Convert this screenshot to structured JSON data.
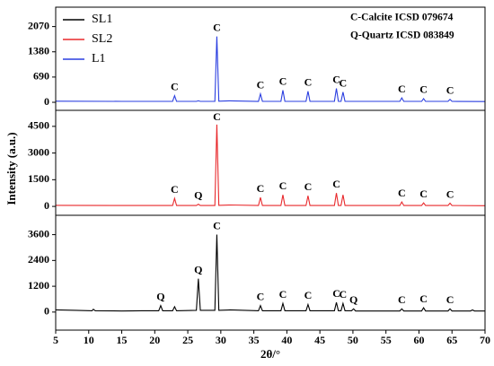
{
  "chart_data": {
    "type": "line",
    "xlabel": "2θ/°",
    "ylabel": "Intensity (a.u.)",
    "xlim": [
      5,
      70
    ],
    "xticks": [
      5,
      10,
      15,
      20,
      25,
      30,
      35,
      40,
      45,
      50,
      55,
      60,
      65,
      70
    ],
    "legend": "upper left",
    "notes": [
      "C-Calcite ICSD 079674",
      "Q-Quartz ICSD 083849"
    ],
    "series": [
      {
        "name": "SL1",
        "color": "#000000",
        "ylim": [
          -840,
          4500
        ],
        "yticks": [
          0,
          1200,
          2400,
          3600
        ],
        "x": [
          5,
          8,
          10.5,
          10.7,
          11,
          15,
          18,
          20.6,
          20.9,
          21.2,
          22.7,
          23,
          23.3,
          26.3,
          26.6,
          26.9,
          29.1,
          29.4,
          29.7,
          31.4,
          35.7,
          36,
          36.3,
          39.1,
          39.4,
          39.7,
          42.9,
          43.2,
          43.5,
          47.2,
          47.5,
          47.8,
          48.2,
          48.5,
          48.8,
          49.8,
          50.1,
          50.4,
          57.1,
          57.4,
          57.7,
          60.4,
          60.7,
          61,
          64.4,
          64.7,
          65,
          67.8,
          68.1,
          68.4,
          70
        ],
        "values": [
          100,
          80,
          60,
          130,
          60,
          50,
          60,
          60,
          300,
          60,
          60,
          250,
          60,
          80,
          1550,
          80,
          80,
          3600,
          80,
          100,
          60,
          300,
          60,
          60,
          400,
          60,
          60,
          350,
          60,
          60,
          450,
          60,
          60,
          400,
          60,
          60,
          150,
          50,
          50,
          150,
          50,
          50,
          200,
          50,
          50,
          150,
          50,
          50,
          100,
          50,
          50
        ],
        "annotations": [
          {
            "text": "Q",
            "x": 20.9
          },
          {
            "text": "Q",
            "x": 26.6
          },
          {
            "text": "C",
            "x": 29.4
          },
          {
            "text": "C",
            "x": 36
          },
          {
            "text": "C",
            "x": 39.4
          },
          {
            "text": "C",
            "x": 43.2
          },
          {
            "text": "C",
            "x": 47.5
          },
          {
            "text": "C",
            "x": 48.5
          },
          {
            "text": "Q",
            "x": 50.1
          },
          {
            "text": "C",
            "x": 57.4
          },
          {
            "text": "C",
            "x": 60.7
          },
          {
            "text": "C",
            "x": 64.7
          }
        ]
      },
      {
        "name": "SL2",
        "color": "#e8282b",
        "ylim": [
          -500,
          5400
        ],
        "yticks": [
          0,
          1500,
          3000,
          4500
        ],
        "x": [
          5,
          15,
          22.7,
          23,
          23.3,
          26.3,
          26.6,
          26.9,
          29.1,
          29.4,
          29.7,
          31.4,
          35.7,
          36,
          36.3,
          39.1,
          39.4,
          39.7,
          42.9,
          43.2,
          43.5,
          47.2,
          47.5,
          47.8,
          48.2,
          48.5,
          48.8,
          57.1,
          57.4,
          57.7,
          60.4,
          60.7,
          61,
          64.4,
          64.7,
          65,
          70
        ],
        "values": [
          60,
          50,
          50,
          450,
          50,
          50,
          120,
          50,
          50,
          4600,
          60,
          80,
          50,
          500,
          50,
          50,
          650,
          50,
          50,
          600,
          50,
          50,
          750,
          50,
          50,
          650,
          50,
          50,
          250,
          50,
          50,
          200,
          50,
          50,
          180,
          50,
          40
        ],
        "annotations": [
          {
            "text": "C",
            "x": 23
          },
          {
            "text": "Q",
            "x": 26.6
          },
          {
            "text": "C",
            "x": 29.4
          },
          {
            "text": "C",
            "x": 36
          },
          {
            "text": "C",
            "x": 39.4
          },
          {
            "text": "C",
            "x": 43.2
          },
          {
            "text": "C",
            "x": 47.5
          },
          {
            "text": "C",
            "x": 57.4
          },
          {
            "text": "C",
            "x": 60.7
          },
          {
            "text": "C",
            "x": 64.7
          }
        ]
      },
      {
        "name": "L1",
        "color": "#2a3ee0",
        "ylim": [
          -220,
          2600
        ],
        "yticks": [
          0,
          690,
          1380,
          2070
        ],
        "x": [
          5,
          15,
          22.7,
          23,
          23.3,
          26.3,
          26.6,
          26.9,
          29.1,
          29.4,
          29.7,
          31.4,
          35.7,
          36,
          36.3,
          39.1,
          39.4,
          39.7,
          42.9,
          43.2,
          43.5,
          47.2,
          47.5,
          47.8,
          48.2,
          48.5,
          48.8,
          57.1,
          57.4,
          57.7,
          60.4,
          60.7,
          61,
          64.4,
          64.7,
          65,
          70
        ],
        "values": [
          30,
          25,
          25,
          180,
          25,
          25,
          40,
          25,
          25,
          1800,
          30,
          40,
          25,
          230,
          25,
          25,
          330,
          25,
          25,
          300,
          25,
          25,
          380,
          25,
          25,
          280,
          25,
          25,
          120,
          25,
          25,
          100,
          25,
          25,
          80,
          25,
          20
        ],
        "annotations": [
          {
            "text": "C",
            "x": 23
          },
          {
            "text": "C",
            "x": 29.4
          },
          {
            "text": "C",
            "x": 36
          },
          {
            "text": "C",
            "x": 39.4
          },
          {
            "text": "C",
            "x": 43.2
          },
          {
            "text": "C",
            "x": 47.5
          },
          {
            "text": "C",
            "x": 48.5
          },
          {
            "text": "C",
            "x": 57.4
          },
          {
            "text": "C",
            "x": 60.7
          },
          {
            "text": "C",
            "x": 64.7
          }
        ]
      }
    ]
  }
}
